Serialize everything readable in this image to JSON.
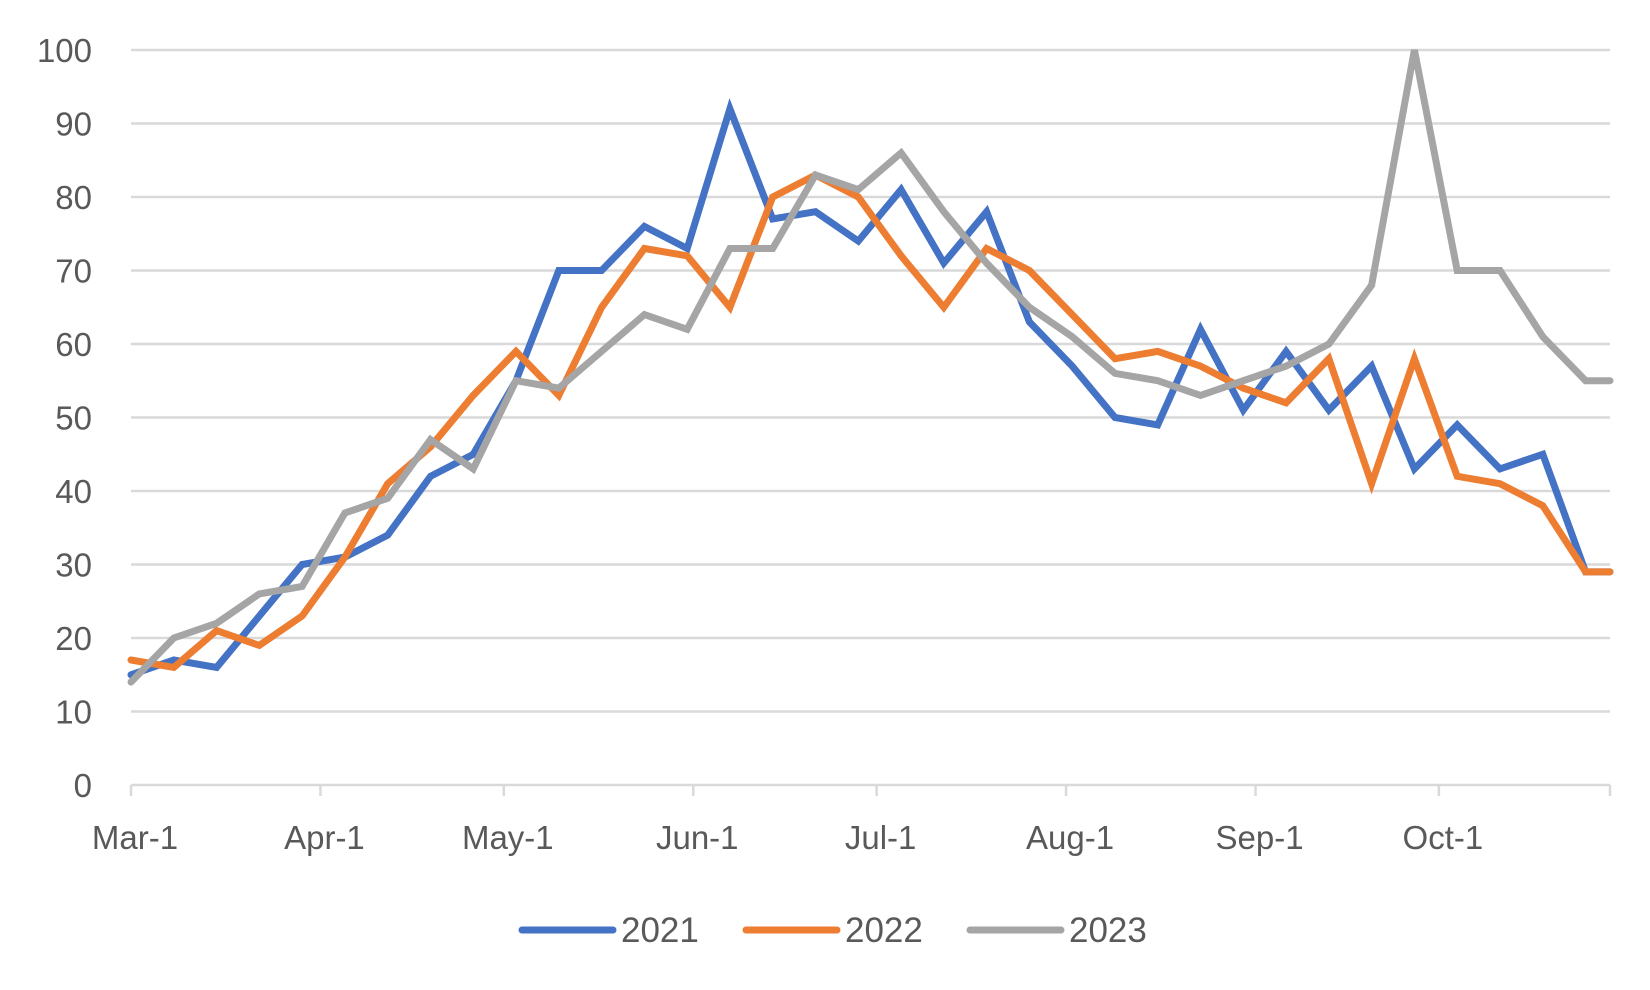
{
  "chart_data": {
    "type": "line",
    "title": "",
    "xlabel": "",
    "ylabel": "",
    "ylim": [
      0,
      100
    ],
    "y_ticks": [
      0,
      10,
      20,
      30,
      40,
      50,
      60,
      70,
      80,
      90,
      100
    ],
    "x_ticks": [
      "Mar-1",
      "Apr-1",
      "May-1",
      "Jun-1",
      "Jul-1",
      "Aug-1",
      "Sep-1",
      "Oct-1"
    ],
    "x_tick_dates": [
      "03-01",
      "04-01",
      "05-01",
      "06-01",
      "07-01",
      "08-01",
      "09-01",
      "10-01"
    ],
    "x_range": [
      "03-01",
      "10-29"
    ],
    "grid": true,
    "legend_position": "bottom",
    "x_dates": [
      "03-01",
      "03-08",
      "03-15",
      "03-22",
      "03-29",
      "04-05",
      "04-12",
      "04-19",
      "04-26",
      "05-03",
      "05-10",
      "05-17",
      "05-24",
      "05-31",
      "06-07",
      "06-14",
      "06-21",
      "06-28",
      "07-05",
      "07-12",
      "07-19",
      "07-26",
      "08-02",
      "08-09",
      "08-16",
      "08-23",
      "08-30",
      "09-06",
      "09-13",
      "09-20",
      "09-27",
      "10-04",
      "10-11",
      "10-18",
      "10-25",
      "10-29"
    ],
    "series": [
      {
        "name": "2021",
        "color": "#4472C4",
        "values": [
          15,
          17,
          16,
          23,
          30,
          31,
          34,
          42,
          45,
          55,
          70,
          70,
          76,
          73,
          92,
          77,
          78,
          74,
          81,
          71,
          78,
          63,
          57,
          50,
          49,
          62,
          51,
          59,
          51,
          57,
          43,
          49,
          43,
          45,
          29,
          29
        ]
      },
      {
        "name": "2022",
        "color": "#ED7D31",
        "values": [
          17,
          16,
          21,
          19,
          23,
          31,
          41,
          46,
          53,
          59,
          53,
          65,
          73,
          72,
          65,
          80,
          83,
          80,
          72,
          65,
          73,
          70,
          64,
          58,
          59,
          57,
          54,
          52,
          58,
          41,
          58,
          42,
          41,
          38,
          29,
          29
        ]
      },
      {
        "name": "2023",
        "color": "#A5A5A5",
        "values": [
          14,
          20,
          22,
          26,
          27,
          37,
          39,
          47,
          43,
          55,
          54,
          59,
          64,
          62,
          73,
          73,
          83,
          81,
          86,
          78,
          71,
          65,
          61,
          56,
          55,
          53,
          55,
          57,
          60,
          68,
          100,
          70,
          70,
          61,
          55,
          55
        ]
      }
    ]
  }
}
